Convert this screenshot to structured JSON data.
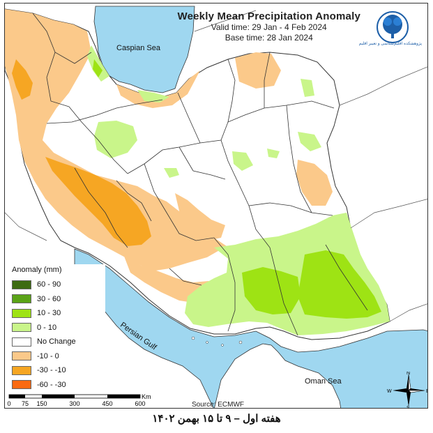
{
  "title": "Weekly Mean Precipitation Anomaly",
  "valid_time": "Valid time:  29 Jan - 4 Feb 2024",
  "base_time": "Base time: 28 Jan 2024",
  "logo_icon": "institute-tree-logo-icon",
  "logo_text": "پژوهشکده اقلیم‌شناسی و تغییر اقلیم",
  "labels": {
    "caspian": "Caspian Sea",
    "persian_gulf": "Persian Gulf",
    "oman_sea": "Oman Sea"
  },
  "legend": {
    "title": "Anomaly (mm)",
    "items": [
      {
        "label": "60 - 90",
        "color": "#3d6b12"
      },
      {
        "label": "30 - 60",
        "color": "#5aa317"
      },
      {
        "label": "10 - 30",
        "color": "#9ee314"
      },
      {
        "label": "0 - 10",
        "color": "#c9f58a"
      },
      {
        "label": "No Change",
        "color": "#ffffff"
      },
      {
        "label": "-10 - 0",
        "color": "#fbc98a"
      },
      {
        "label": "-30 - -10",
        "color": "#f6a623"
      },
      {
        "label": "-60 - -30",
        "color": "#fb6a12"
      }
    ]
  },
  "scale": {
    "ticks": [
      "0",
      "75",
      "150",
      "300",
      "450",
      "600"
    ],
    "unit": "Km"
  },
  "source": "Source: ECMWF",
  "compass": {
    "n": "N",
    "s": "S",
    "e": "E",
    "w": "W"
  },
  "caption": "هفته اول – ۹ تا ۱۵ بهمن ۱۴۰۲",
  "colors": {
    "sea": "#9fd7f0",
    "land_outside": "#ffffff",
    "border": "#333333"
  }
}
